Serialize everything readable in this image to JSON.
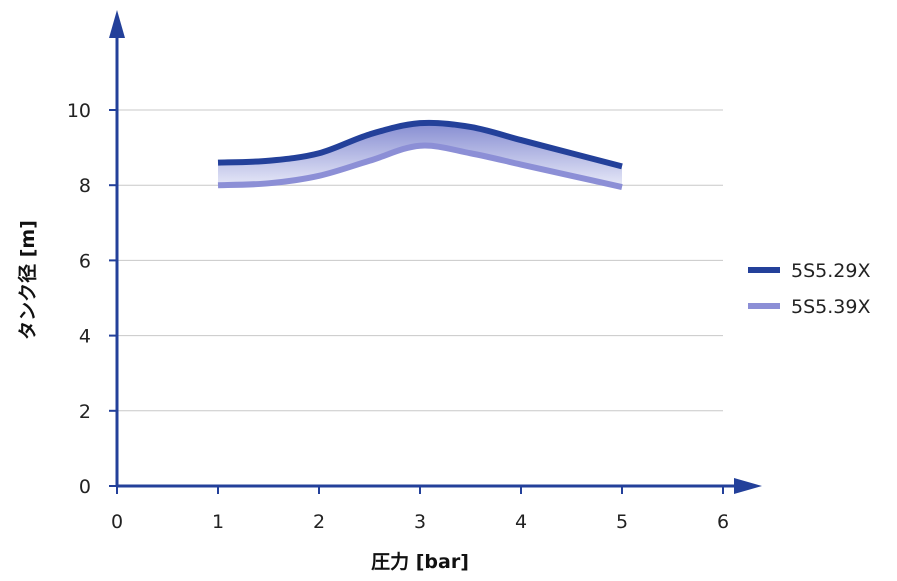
{
  "chart_data": {
    "type": "line",
    "title": "",
    "xlabel": "圧力 [bar]",
    "ylabel": "タンク径 [m]",
    "xlim": [
      0,
      6
    ],
    "ylim": [
      0,
      10
    ],
    "x_ticks": [
      0,
      1,
      2,
      3,
      4,
      5,
      6
    ],
    "y_ticks": [
      0,
      2,
      4,
      6,
      8,
      10
    ],
    "grid": "horizontal",
    "legend_position": "right",
    "band_fill": true,
    "series": [
      {
        "name": "5S5.29X",
        "color": "#23409a",
        "x": [
          1,
          1.5,
          2,
          2.5,
          3,
          3.5,
          4,
          4.5,
          5
        ],
        "y": [
          8.6,
          8.65,
          8.85,
          9.35,
          9.65,
          9.55,
          9.2,
          8.85,
          8.5
        ]
      },
      {
        "name": "5S5.39X",
        "color": "#8c8fd6",
        "x": [
          1,
          1.5,
          2,
          2.5,
          3,
          3.5,
          4,
          4.5,
          5
        ],
        "y": [
          8.0,
          8.05,
          8.25,
          8.65,
          9.05,
          8.85,
          8.55,
          8.25,
          7.95
        ]
      }
    ]
  }
}
